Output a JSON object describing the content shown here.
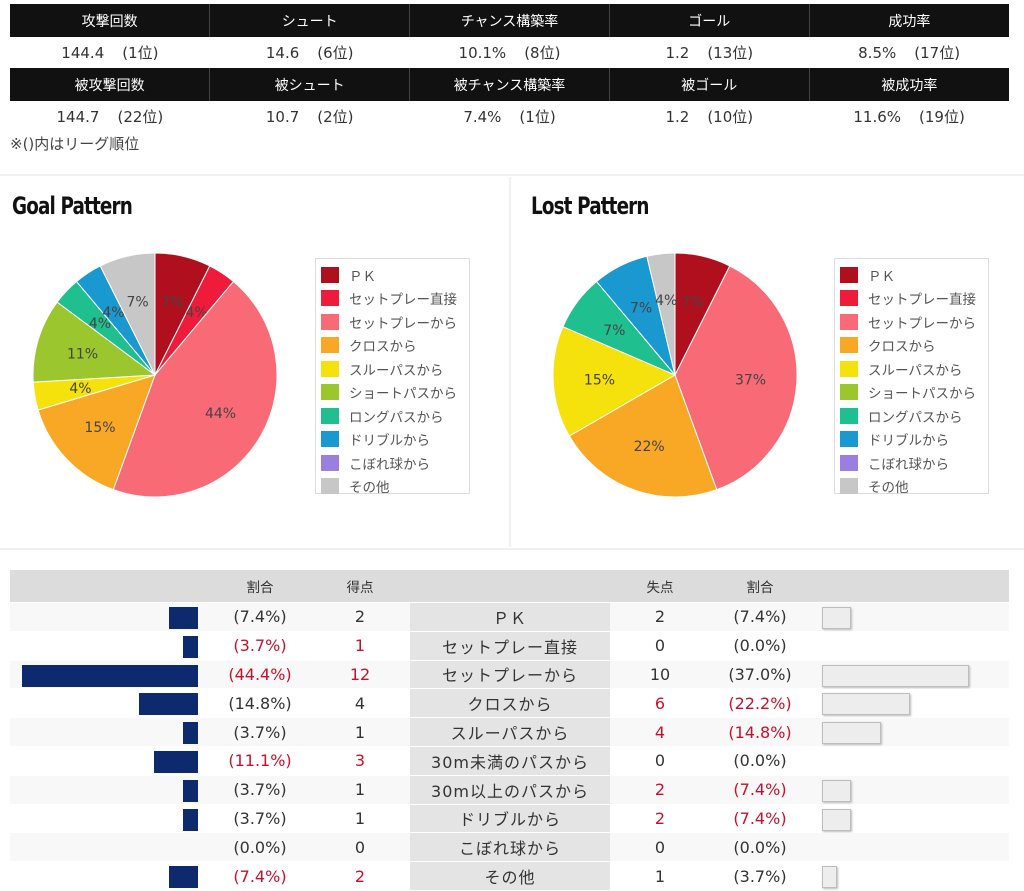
{
  "stats_table": {
    "attack_headers": [
      "攻撃回数",
      "シュート",
      "チャンス構築率",
      "ゴール",
      "成功率"
    ],
    "attack_values": [
      {
        "value": "144.4",
        "rank": "(1位)"
      },
      {
        "value": "14.6",
        "rank": "(6位)"
      },
      {
        "value": "10.1%",
        "rank": "(8位)"
      },
      {
        "value": "1.2",
        "rank": "(13位)"
      },
      {
        "value": "8.5%",
        "rank": "(17位)"
      }
    ],
    "defense_headers": [
      "被攻撃回数",
      "被シュート",
      "被チャンス構築率",
      "被ゴール",
      "被成功率"
    ],
    "defense_values": [
      {
        "value": "144.7",
        "rank": "(22位)"
      },
      {
        "value": "10.7",
        "rank": "(2位)"
      },
      {
        "value": "7.4%",
        "rank": "(1位)"
      },
      {
        "value": "1.2",
        "rank": "(10位)"
      },
      {
        "value": "11.6%",
        "rank": "(19位)"
      }
    ],
    "note": "※()内はリーグ順位"
  },
  "legend_labels": [
    "ＰＫ",
    "セットプレー直接",
    "セットプレーから",
    "クロスから",
    "スルーパスから",
    "ショートパスから",
    "ロングパスから",
    "ドリブルから",
    "こぼれ球から",
    "その他"
  ],
  "legend_colors": [
    "#b0101e",
    "#ee1c3a",
    "#f76a76",
    "#f9a825",
    "#f5e10c",
    "#9bc62e",
    "#1fbf8f",
    "#1a98d0",
    "#9b7fe0",
    "#c7c7c7"
  ],
  "chart_data": [
    {
      "type": "pie",
      "title": "Goal Pattern",
      "categories": [
        "ＰＫ",
        "セットプレー直接",
        "セットプレーから",
        "クロスから",
        "スルーパスから",
        "ショートパスから",
        "ロングパスから",
        "ドリブルから",
        "こぼれ球から",
        "その他"
      ],
      "values": [
        7.4,
        3.7,
        44.4,
        14.8,
        3.7,
        11.1,
        3.7,
        3.7,
        0,
        7.4
      ],
      "labels": [
        "7%",
        "4%",
        "44%",
        "15%",
        "4%",
        "11%",
        "4%",
        "4%",
        "",
        "7%"
      ]
    },
    {
      "type": "pie",
      "title": "Lost Pattern",
      "categories": [
        "ＰＫ",
        "セットプレー直接",
        "セットプレーから",
        "クロスから",
        "スルーパスから",
        "ショートパスから",
        "ロングパスから",
        "ドリブルから",
        "こぼれ球から",
        "その他"
      ],
      "values": [
        7.4,
        0,
        37.0,
        22.2,
        14.8,
        0,
        7.4,
        7.4,
        0,
        3.7
      ],
      "labels": [
        "7%",
        "",
        "37%",
        "22%",
        "15%",
        "",
        "7%",
        "7%",
        "",
        "4%"
      ]
    }
  ],
  "comparison": {
    "headers": {
      "left_ratio": "割合",
      "goals": "得点",
      "conceded": "失点",
      "right_ratio": "割合"
    },
    "rows": [
      {
        "label": "ＰＫ",
        "g_ratio": "(7.4%)",
        "goals": "2",
        "c": "2",
        "c_ratio": "(7.4%)",
        "g_val": 7.4,
        "c_val": 7.4,
        "g_red": false,
        "c_red": false
      },
      {
        "label": "セットプレー直接",
        "g_ratio": "(3.7%)",
        "goals": "1",
        "c": "0",
        "c_ratio": "(0.0%)",
        "g_val": 3.7,
        "c_val": 0,
        "g_red": true,
        "c_red": false
      },
      {
        "label": "セットプレーから",
        "g_ratio": "(44.4%)",
        "goals": "12",
        "c": "10",
        "c_ratio": "(37.0%)",
        "g_val": 44.4,
        "c_val": 37.0,
        "g_red": true,
        "c_red": false
      },
      {
        "label": "クロスから",
        "g_ratio": "(14.8%)",
        "goals": "4",
        "c": "6",
        "c_ratio": "(22.2%)",
        "g_val": 14.8,
        "c_val": 22.2,
        "g_red": false,
        "c_red": true
      },
      {
        "label": "スルーパスから",
        "g_ratio": "(3.7%)",
        "goals": "1",
        "c": "4",
        "c_ratio": "(14.8%)",
        "g_val": 3.7,
        "c_val": 14.8,
        "g_red": false,
        "c_red": true
      },
      {
        "label": "30m未満のパスから",
        "g_ratio": "(11.1%)",
        "goals": "3",
        "c": "0",
        "c_ratio": "(0.0%)",
        "g_val": 11.1,
        "c_val": 0,
        "g_red": true,
        "c_red": false
      },
      {
        "label": "30m以上のパスから",
        "g_ratio": "(3.7%)",
        "goals": "1",
        "c": "2",
        "c_ratio": "(7.4%)",
        "g_val": 3.7,
        "c_val": 7.4,
        "g_red": false,
        "c_red": true
      },
      {
        "label": "ドリブルから",
        "g_ratio": "(3.7%)",
        "goals": "1",
        "c": "2",
        "c_ratio": "(7.4%)",
        "g_val": 3.7,
        "c_val": 7.4,
        "g_red": false,
        "c_red": true
      },
      {
        "label": "こぼれ球から",
        "g_ratio": "(0.0%)",
        "goals": "0",
        "c": "0",
        "c_ratio": "(0.0%)",
        "g_val": 0,
        "c_val": 0,
        "g_red": false,
        "c_red": false
      },
      {
        "label": "その他",
        "g_ratio": "(7.4%)",
        "goals": "2",
        "c": "1",
        "c_ratio": "(3.7%)",
        "g_val": 7.4,
        "c_val": 3.7,
        "g_red": true,
        "c_red": false
      }
    ]
  }
}
